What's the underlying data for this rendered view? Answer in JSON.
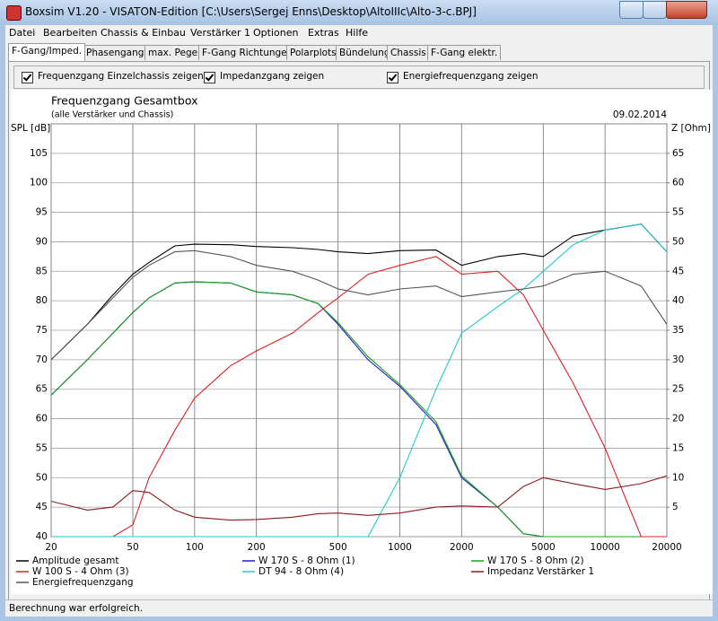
{
  "window": {
    "title": "Boxsim V1.20 - VISATON-Edition [C:\\Users\\Sergej Enns\\Desktop\\AltoIIIc\\Alto-3-c.BPJ]",
    "menu": [
      "Datei",
      "Bearbeiten",
      "Chassis & Einbau",
      "Verstärker 1",
      "Optionen",
      "Extras",
      "Hilfe"
    ],
    "tabs": [
      "F-Gang/Imped.",
      "Phasengang",
      "max. Pegel",
      "F-Gang Richtungen",
      "Polarplots",
      "Bündelung",
      "Chassis",
      "F-Gang elektr."
    ],
    "active_tab": 0
  },
  "options": [
    {
      "label": "Frequenzgang Einzelchassis zeigen",
      "checked": true
    },
    {
      "label": "Impedanzgang zeigen",
      "checked": true
    },
    {
      "label": "Energiefrequenzgang zeigen",
      "checked": true
    }
  ],
  "chart_data": {
    "type": "line",
    "title": "Frequenzgang Gesamtbox",
    "subtitle": "(alle Verstärker und Chassis)",
    "date": "09.02.2014",
    "y_label": "SPL [dB]",
    "y2_label": "Z [Ohm]",
    "x_scale": "log",
    "grid": true,
    "x": [
      20,
      30,
      40,
      50,
      60,
      80,
      100,
      150,
      200,
      300,
      400,
      500,
      700,
      1000,
      1500,
      2000,
      3000,
      4000,
      5000,
      7000,
      10000,
      15000,
      20000
    ],
    "xlim": [
      20,
      20000
    ],
    "xticks": [
      20,
      50,
      100,
      200,
      500,
      1000,
      2000,
      5000,
      10000,
      20000
    ],
    "ylim": [
      40,
      110
    ],
    "yticks": [
      40,
      45,
      50,
      55,
      60,
      65,
      70,
      75,
      80,
      85,
      90,
      95,
      100,
      105
    ],
    "y2lim": [
      0,
      70
    ],
    "y2ticks": [
      5,
      10,
      15,
      20,
      25,
      30,
      35,
      40,
      45,
      50,
      55,
      60,
      65
    ],
    "series": [
      {
        "name": "Amplitude gesamt",
        "color": "#000000",
        "values": [
          70,
          76,
          81,
          84.5,
          86.5,
          89.3,
          89.6,
          89.5,
          89.2,
          89,
          88.7,
          88.3,
          88,
          88.5,
          88.6,
          86,
          87.5,
          88,
          87.5,
          91,
          92,
          93,
          88.3
        ]
      },
      {
        "name": "W 170 S - 8 Ohm (1)",
        "color": "#1c1cc8",
        "values": [
          64,
          70,
          74.5,
          78,
          80.5,
          83,
          83.2,
          83,
          81.5,
          81,
          79.5,
          76,
          70,
          65.5,
          59,
          50,
          45,
          40.5,
          40,
          40,
          40,
          40,
          40
        ]
      },
      {
        "name": "W 170 S - 8 Ohm (2)",
        "color": "#18a018",
        "values": [
          64,
          70,
          74.5,
          78,
          80.5,
          83,
          83.2,
          83,
          81.5,
          81,
          79.5,
          76.3,
          70.5,
          65.8,
          59.5,
          50.3,
          45,
          40.5,
          40,
          40,
          40,
          40,
          40
        ]
      },
      {
        "name": "W 100 S - 4 Ohm (3)",
        "color": "#e02020",
        "values": [
          40,
          40,
          40,
          42,
          50,
          58,
          63.5,
          69,
          71.5,
          74.5,
          78,
          80.5,
          84.5,
          86,
          87.5,
          84.5,
          85,
          81,
          75,
          66,
          55,
          40,
          40
        ]
      },
      {
        "name": "DT 94 - 8 Ohm (4)",
        "color": "#20c8d0",
        "values": [
          40,
          40,
          40,
          40,
          40,
          40,
          40,
          40,
          40,
          40,
          40,
          40,
          40,
          50,
          65,
          74.5,
          79,
          82,
          85,
          89.5,
          92,
          93,
          88.3
        ]
      },
      {
        "name": "Impedanz Verstärker 1",
        "color": "#8b1a1a",
        "axis": "y2",
        "values": [
          6,
          4.5,
          5,
          7.8,
          7.5,
          4.5,
          3.3,
          2.8,
          2.9,
          3.3,
          3.9,
          4,
          3.6,
          4,
          5,
          5.2,
          5,
          8.5,
          10,
          9,
          8,
          9,
          10.3
        ]
      },
      {
        "name": "Energiefrequenzgang",
        "color": "#555555",
        "values": [
          70,
          76,
          80.5,
          84,
          86,
          88.3,
          88.5,
          87.5,
          86,
          85,
          83.5,
          82,
          81,
          82,
          82.5,
          80.7,
          81.5,
          82,
          82.5,
          84.5,
          85,
          82.5,
          76
        ]
      }
    ]
  },
  "status": "Berechnung war erfolgreich."
}
